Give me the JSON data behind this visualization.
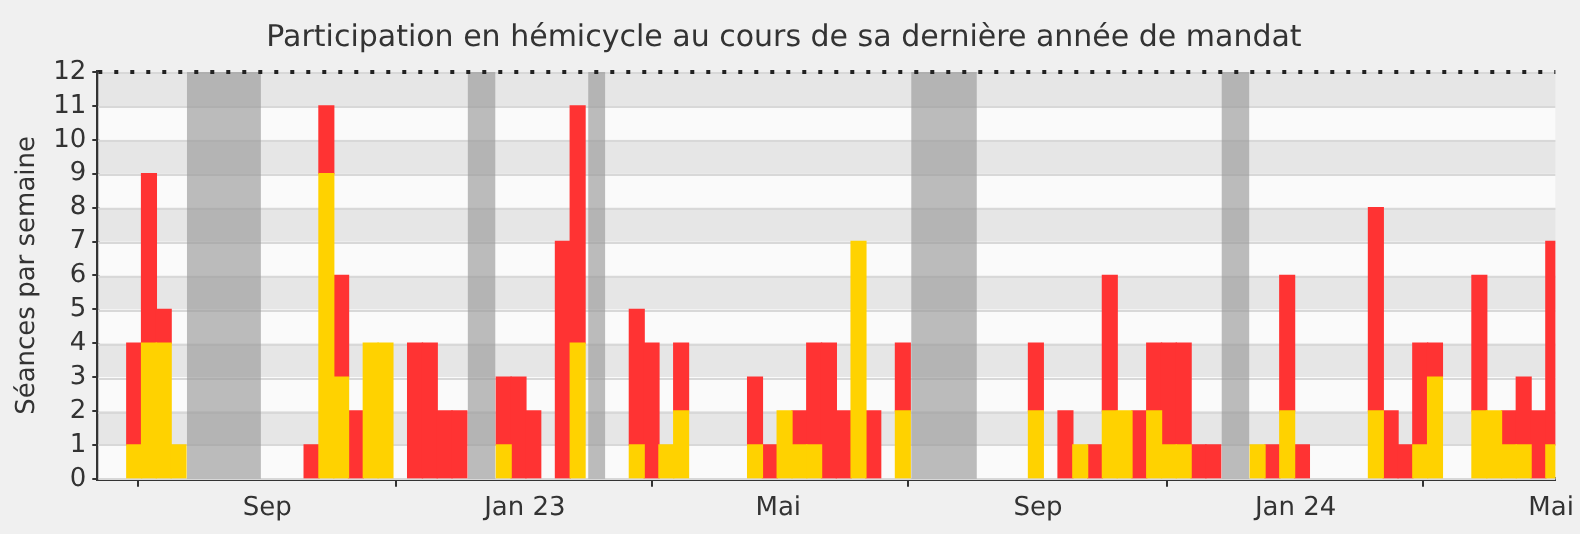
{
  "chart_data": {
    "type": "bar",
    "title": "Participation en hémicycle au cours de sa dernière année de mandat",
    "ylabel": "Séances par semaine",
    "x": [
      "2022-06-30",
      "2022-07-07",
      "2022-07-14",
      "2022-07-21",
      "2022-09-22",
      "2022-09-29",
      "2022-10-06",
      "2022-10-13",
      "2022-10-20",
      "2022-10-27",
      "2022-11-10",
      "2022-11-17",
      "2022-11-24",
      "2022-12-01",
      "2022-12-22",
      "2022-12-29",
      "2023-01-05",
      "2023-01-19",
      "2023-01-26",
      "2023-02-23",
      "2023-03-02",
      "2023-03-09",
      "2023-03-16",
      "2023-04-20",
      "2023-04-27",
      "2023-05-04",
      "2023-05-11",
      "2023-05-18",
      "2023-05-25",
      "2023-06-01",
      "2023-06-08",
      "2023-06-15",
      "2023-06-29",
      "2023-08-31",
      "2023-09-14",
      "2023-09-21",
      "2023-09-28",
      "2023-10-05",
      "2023-10-12",
      "2023-10-19",
      "2023-10-26",
      "2023-11-02",
      "2023-11-09",
      "2023-11-16",
      "2023-11-23",
      "2023-12-14",
      "2023-12-21",
      "2023-12-28",
      "2024-01-04",
      "2024-02-08",
      "2024-02-15",
      "2024-02-22",
      "2024-02-29",
      "2024-03-07",
      "2024-03-28",
      "2024-04-04",
      "2024-04-11",
      "2024-04-18",
      "2024-04-25",
      "2024-05-02"
    ],
    "series": [
      {
        "color": "#ffd200",
        "values": [
          1,
          4,
          4,
          1,
          null,
          9,
          3,
          null,
          4,
          4,
          null,
          null,
          null,
          null,
          1,
          null,
          null,
          null,
          4,
          1,
          null,
          1,
          2,
          1,
          null,
          2,
          1,
          1,
          null,
          null,
          7,
          null,
          2,
          2,
          null,
          1,
          null,
          2,
          2,
          null,
          2,
          1,
          1,
          null,
          null,
          1,
          null,
          2,
          null,
          2,
          null,
          null,
          1,
          3,
          2,
          2,
          1,
          1,
          null,
          1
        ]
      },
      {
        "color": "#ff3333",
        "values": [
          3,
          5,
          1,
          null,
          1,
          2,
          3,
          2,
          null,
          null,
          4,
          4,
          2,
          2,
          2,
          3,
          2,
          7,
          7,
          4,
          4,
          null,
          2,
          2,
          1,
          null,
          1,
          3,
          4,
          2,
          null,
          2,
          2,
          2,
          2,
          null,
          1,
          4,
          null,
          2,
          2,
          3,
          3,
          1,
          1,
          null,
          1,
          4,
          1,
          6,
          2,
          1,
          3,
          1,
          4,
          null,
          1,
          2,
          2,
          6
        ]
      }
    ],
    "stacked": true,
    "bands": [
      {
        "axis": "x",
        "from": "2022-07-25",
        "to": "2022-08-29",
        "color": "#999999"
      },
      {
        "axis": "x",
        "from": "2022-12-05",
        "to": "2022-12-18",
        "color": "#999999"
      },
      {
        "axis": "x",
        "from": "2023-01-31",
        "to": "2023-02-08",
        "color": "#999999"
      },
      {
        "axis": "x",
        "from": "2023-07-03",
        "to": "2023-08-03",
        "color": "#999999"
      },
      {
        "axis": "x",
        "from": "2023-11-27",
        "to": "2023-12-10",
        "color": "#999999"
      }
    ],
    "xlim": [
      "2022-06-13",
      "2024-05-03"
    ],
    "xticks": [
      {
        "value": "2022-09-01",
        "label": "Sep"
      },
      {
        "value": "2023-01-01",
        "label": "Jan 23"
      },
      {
        "value": "2023-05-01",
        "label": "Mai"
      },
      {
        "value": "2023-09-01",
        "label": "Sep"
      },
      {
        "value": "2024-01-01",
        "label": "Jan 24"
      },
      {
        "value": "2024-05-01",
        "label": "Mai"
      }
    ],
    "ylim": [
      0,
      12
    ],
    "yticks": [
      0,
      1,
      2,
      3,
      4,
      5,
      6,
      7,
      8,
      9,
      10,
      11,
      12
    ],
    "grid": "y",
    "legend": false
  }
}
